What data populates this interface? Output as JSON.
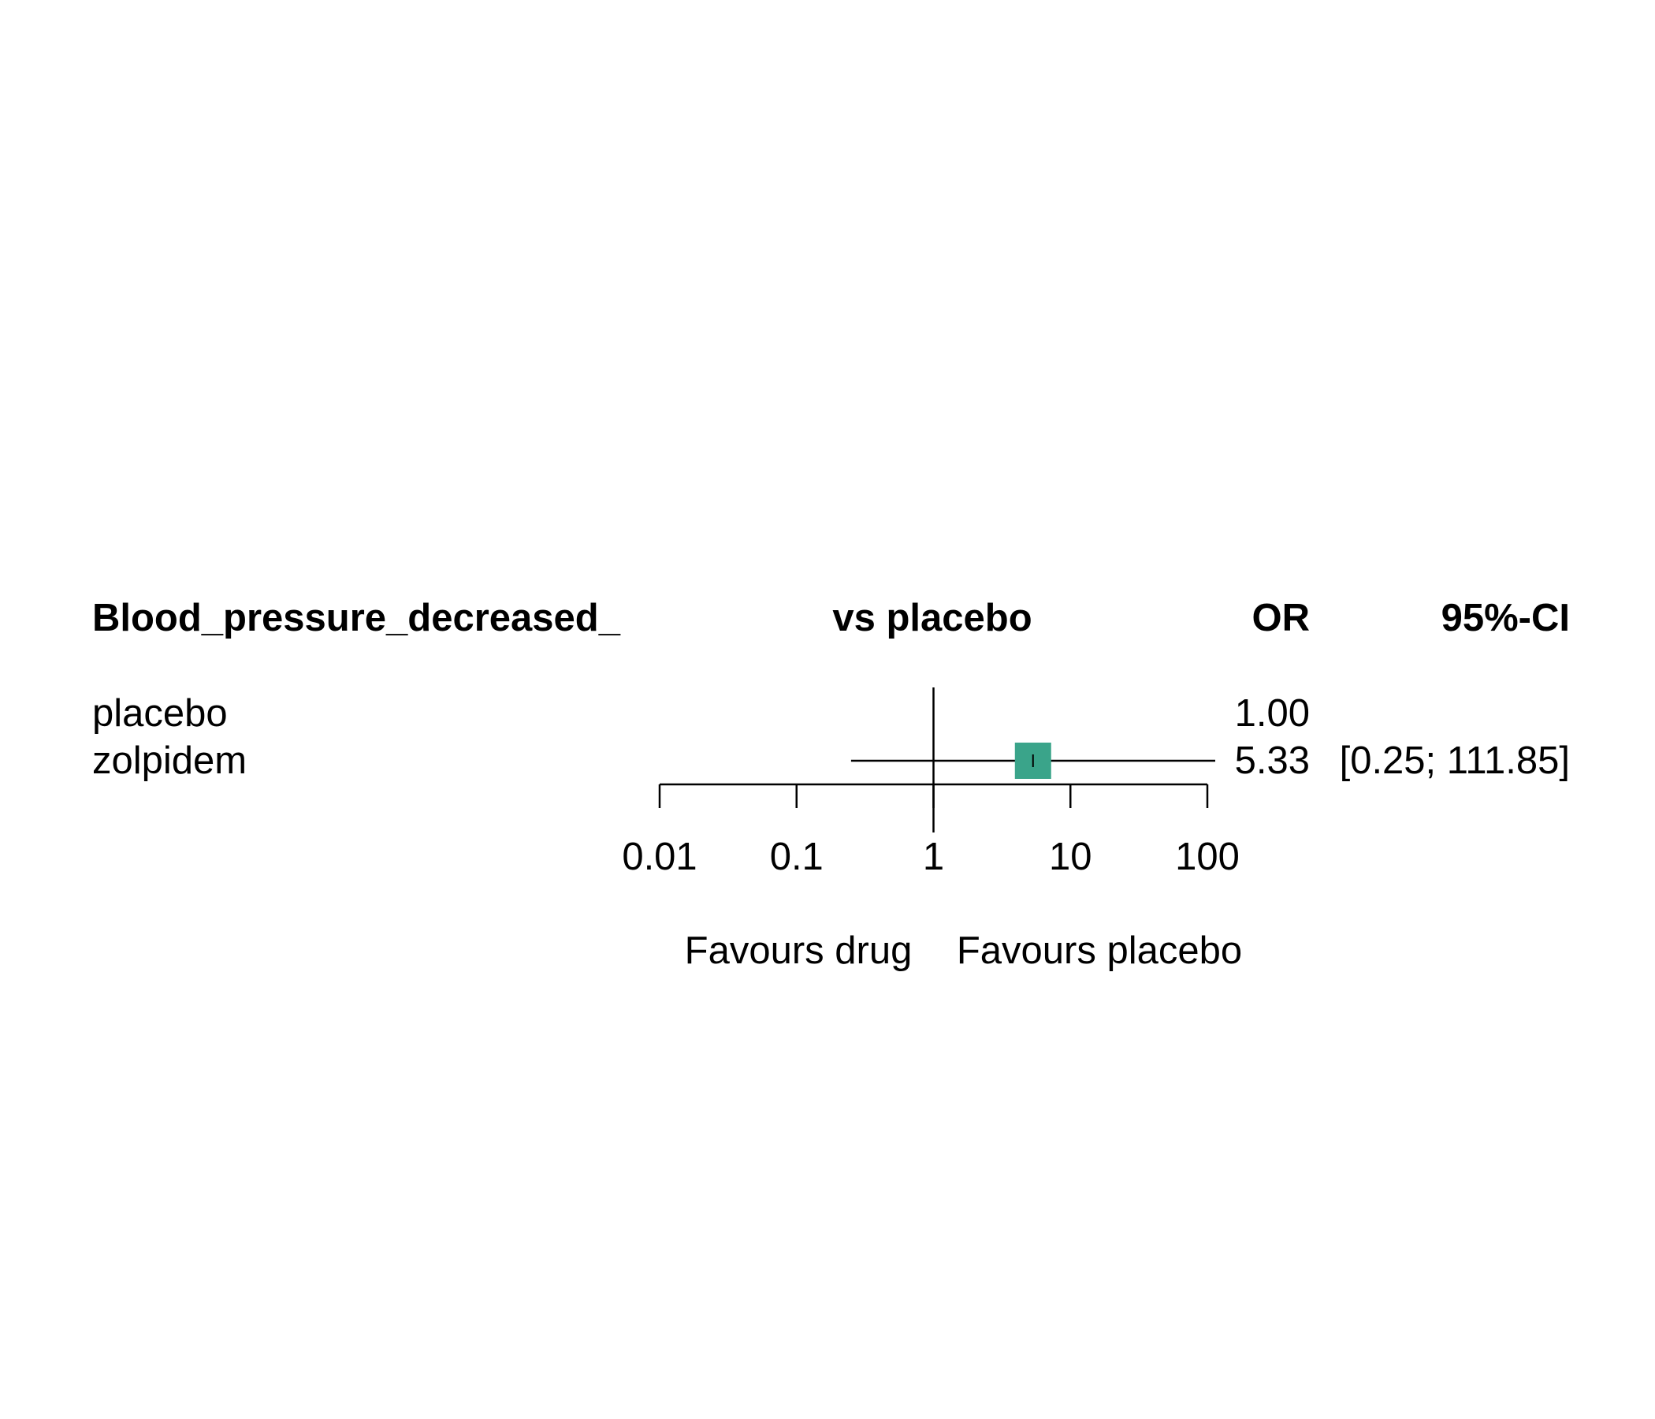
{
  "chart_data": {
    "type": "forest",
    "headers": {
      "outcome": "Blood_pressure_decreased_",
      "comparison": "vs placebo",
      "effect": "OR",
      "ci": "95%-CI"
    },
    "rows": [
      {
        "label": "placebo",
        "or_text": "1.00",
        "ci_text": "",
        "or": 1.0,
        "lower": null,
        "upper": null
      },
      {
        "label": "zolpidem",
        "or_text": "5.33",
        "ci_text": "[0.25; 111.85]",
        "or": 5.33,
        "lower": 0.25,
        "upper": 111.85
      }
    ],
    "x_axis": {
      "scale": "log",
      "ticks": [
        0.01,
        0.1,
        1,
        10,
        100
      ],
      "tick_labels": [
        "0.01",
        "0.1",
        "1",
        "10",
        "100"
      ],
      "range": [
        0.01,
        100
      ],
      "reference_line": 1
    },
    "favours": {
      "left": "Favours drug",
      "right": "Favours placebo"
    },
    "colors": {
      "box": "#3aa48a",
      "line": "#000000"
    }
  }
}
